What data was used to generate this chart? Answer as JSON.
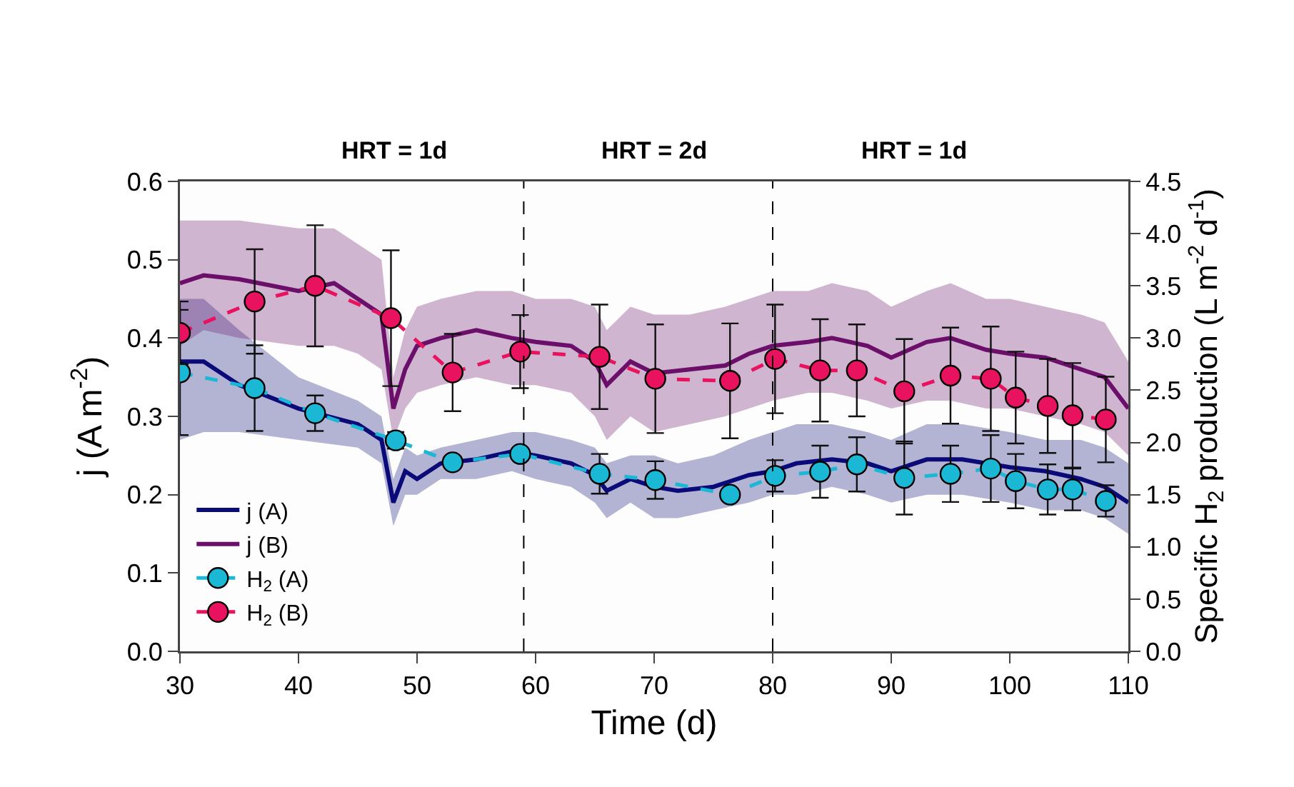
{
  "chart_data": {
    "type": "line",
    "xlabel": "Time (d)",
    "ylabel": "j (A m$^{-2}$)",
    "y2label": "Specific H$_{2}$ production (L m$^{-2}$ d$^{-1}$)",
    "xlim": [
      30,
      110
    ],
    "xticks": [
      30,
      40,
      50,
      60,
      70,
      80,
      90,
      100,
      110
    ],
    "ylim": [
      0,
      0.6
    ],
    "yticks": [
      {
        "value": 0,
        "label": "0.0"
      },
      0.1,
      0.2,
      0.3,
      0.4,
      0.5,
      0.6
    ],
    "y2lim": [
      0,
      4.5
    ],
    "y2ticks": [
      {
        "value": 0,
        "label": "0.0"
      },
      0.5,
      {
        "value": 1,
        "label": "1.0"
      },
      1.5,
      {
        "value": 2,
        "label": "2.0"
      },
      2.5,
      {
        "value": 3,
        "label": "3.0"
      },
      3.5,
      {
        "value": 4,
        "label": "4.0"
      },
      4.5
    ],
    "grid": false,
    "legend": "bottom left",
    "annotations": [
      "HRT = 1d",
      "HRT = 2d",
      "HRT = 1d"
    ],
    "ref_lines": [
      {
        "axis": "x",
        "value": 59,
        "color": "#000000",
        "line_style": "dashed"
      },
      {
        "axis": "x",
        "value": 80,
        "color": "#000000",
        "line_style": "dashed"
      }
    ],
    "series": [
      {
        "name": "j (A)",
        "color": "#0a0a78",
        "marker": "none",
        "line_style": "solid",
        "x": [
          30,
          32,
          35,
          40,
          45,
          47,
          48,
          49,
          50,
          52,
          55,
          58,
          60,
          63,
          65,
          66,
          68,
          70,
          72,
          75,
          78,
          80,
          82,
          85,
          88,
          90,
          93,
          96,
          100,
          103,
          106,
          108,
          110
        ],
        "values": [
          0.37,
          0.37,
          0.34,
          0.31,
          0.29,
          0.27,
          0.19,
          0.23,
          0.22,
          0.24,
          0.245,
          0.255,
          0.25,
          0.24,
          0.225,
          0.205,
          0.22,
          0.21,
          0.205,
          0.21,
          0.225,
          0.23,
          0.24,
          0.245,
          0.24,
          0.23,
          0.245,
          0.245,
          0.235,
          0.23,
          0.22,
          0.21,
          0.19
        ],
        "lower": [
          0.27,
          0.28,
          0.28,
          0.27,
          0.26,
          0.24,
          0.16,
          0.2,
          0.2,
          0.22,
          0.22,
          0.23,
          0.22,
          0.21,
          0.19,
          0.17,
          0.19,
          0.17,
          0.17,
          0.18,
          0.19,
          0.2,
          0.2,
          0.21,
          0.2,
          0.19,
          0.2,
          0.2,
          0.19,
          0.18,
          0.18,
          0.17,
          0.15
        ],
        "upper": [
          0.45,
          0.45,
          0.41,
          0.35,
          0.32,
          0.3,
          0.22,
          0.26,
          0.25,
          0.26,
          0.27,
          0.28,
          0.28,
          0.27,
          0.26,
          0.24,
          0.25,
          0.25,
          0.24,
          0.25,
          0.27,
          0.28,
          0.29,
          0.29,
          0.28,
          0.27,
          0.29,
          0.29,
          0.28,
          0.27,
          0.27,
          0.26,
          0.24
        ]
      },
      {
        "name": "j (B)",
        "color": "#6b0f6b",
        "marker": "none",
        "line_style": "solid",
        "x": [
          30,
          32,
          35,
          40,
          43,
          45,
          47,
          48,
          49,
          50,
          52,
          55,
          58,
          60,
          63,
          65,
          66,
          68,
          70,
          73,
          76,
          78,
          80,
          83,
          85,
          88,
          90,
          93,
          95,
          98,
          100,
          103,
          106,
          108,
          110
        ],
        "values": [
          0.47,
          0.48,
          0.475,
          0.46,
          0.47,
          0.45,
          0.43,
          0.31,
          0.36,
          0.39,
          0.4,
          0.41,
          0.4,
          0.395,
          0.39,
          0.37,
          0.34,
          0.37,
          0.355,
          0.36,
          0.365,
          0.38,
          0.39,
          0.395,
          0.4,
          0.39,
          0.375,
          0.395,
          0.4,
          0.385,
          0.38,
          0.375,
          0.36,
          0.35,
          0.31
        ],
        "lower": [
          0.39,
          0.41,
          0.4,
          0.39,
          0.39,
          0.38,
          0.36,
          0.27,
          0.31,
          0.33,
          0.34,
          0.35,
          0.34,
          0.34,
          0.33,
          0.3,
          0.27,
          0.3,
          0.28,
          0.29,
          0.3,
          0.31,
          0.32,
          0.33,
          0.33,
          0.32,
          0.31,
          0.32,
          0.32,
          0.31,
          0.31,
          0.3,
          0.29,
          0.28,
          0.25
        ],
        "upper": [
          0.55,
          0.55,
          0.55,
          0.54,
          0.54,
          0.52,
          0.5,
          0.35,
          0.41,
          0.44,
          0.45,
          0.46,
          0.46,
          0.45,
          0.45,
          0.44,
          0.41,
          0.44,
          0.43,
          0.43,
          0.44,
          0.45,
          0.46,
          0.46,
          0.47,
          0.46,
          0.44,
          0.46,
          0.47,
          0.45,
          0.45,
          0.44,
          0.43,
          0.42,
          0.37
        ]
      },
      {
        "name": "H$_{2}$ (A)",
        "type": "line",
        "axis": "y2",
        "color": "#1bb8d6",
        "marker": "circle",
        "line_style": "dashed",
        "x": [
          30,
          36.3,
          41.4,
          48.2,
          53,
          58.7,
          65.4,
          70.1,
          76.4,
          80.2,
          84,
          87.1,
          91.1,
          95,
          98.4,
          100.5,
          103.2,
          105.3,
          108.1
        ],
        "values": [
          2.67,
          2.52,
          2.28,
          2.02,
          1.81,
          1.89,
          1.7,
          1.64,
          1.5,
          1.68,
          1.72,
          1.79,
          1.66,
          1.7,
          1.75,
          1.63,
          1.55,
          1.55,
          1.44
        ],
        "errors": [
          0.6,
          0.41,
          0.17,
          0.08,
          null,
          null,
          0.19,
          0.18,
          null,
          0.15,
          0.25,
          0.26,
          0.35,
          0.27,
          0.32,
          0.26,
          0.24,
          0.2,
          0.15
        ]
      },
      {
        "name": "H$_{2}$ (B)",
        "type": "line",
        "axis": "y2",
        "color": "#e8125f",
        "marker": "circle",
        "line_style": "dashed",
        "x": [
          30,
          36.3,
          41.4,
          47.8,
          53,
          58.7,
          65.4,
          70.1,
          76.4,
          80.2,
          84,
          87.1,
          91.1,
          95,
          98.4,
          100.5,
          103.2,
          105.3,
          108.1
        ],
        "values": [
          3.05,
          3.35,
          3.5,
          3.19,
          2.67,
          2.87,
          2.82,
          2.61,
          2.59,
          2.8,
          2.69,
          2.69,
          2.49,
          2.64,
          2.61,
          2.43,
          2.35,
          2.26,
          2.22
        ],
        "errors": [
          0.3,
          0.5,
          0.58,
          0.65,
          0.37,
          0.35,
          0.5,
          0.52,
          0.55,
          0.52,
          0.49,
          0.44,
          0.5,
          0.46,
          0.5,
          0.44,
          0.45,
          0.5,
          0.41
        ]
      }
    ]
  }
}
